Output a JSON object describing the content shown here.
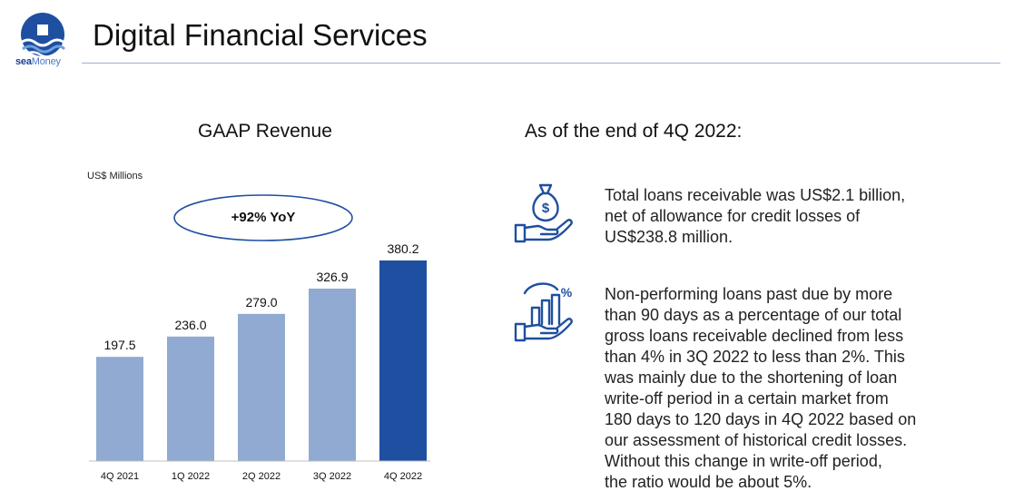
{
  "header": {
    "title": "Digital Financial Services",
    "logo": {
      "brand": "sea",
      "product": "Money"
    }
  },
  "chart_data": {
    "type": "bar",
    "title": "GAAP Revenue",
    "ylabel": "US$ Millions",
    "annotation": "+92% YoY",
    "categories": [
      "4Q 2021",
      "1Q 2022",
      "2Q 2022",
      "3Q 2022",
      "4Q 2022"
    ],
    "values": [
      197.5,
      236.0,
      279.0,
      326.9,
      380.2
    ],
    "labels": [
      "197.5",
      "236.0",
      "279.0",
      "326.9",
      "380.2"
    ],
    "ylim": [
      0,
      380.2
    ],
    "colors": {
      "bar": "#91aad1",
      "highlight": "#1e4fa0"
    },
    "highlight_index": 4,
    "grid": false
  },
  "right": {
    "title": "As of the end of 4Q 2022:",
    "items": [
      {
        "icon": "money-bag-hand-icon",
        "lines": [
          "Total loans receivable was US$2.1 billion,",
          "net of allowance for credit losses of",
          "US$238.8 million."
        ]
      },
      {
        "icon": "bar-chart-hand-percent-icon",
        "lines": [
          "Non-performing loans past due by more",
          "than 90 days as a percentage of our total",
          "gross loans receivable declined from less",
          "than 4% in 3Q 2022 to less than 2%. This",
          "was mainly due to the shortening of loan",
          "write-off period in a certain market from",
          "180 days to 120 days in 4Q 2022 based on",
          "our assessment of historical credit losses.",
          "Without this change in write-off period,",
          "the ratio would be about 5%."
        ]
      }
    ]
  }
}
